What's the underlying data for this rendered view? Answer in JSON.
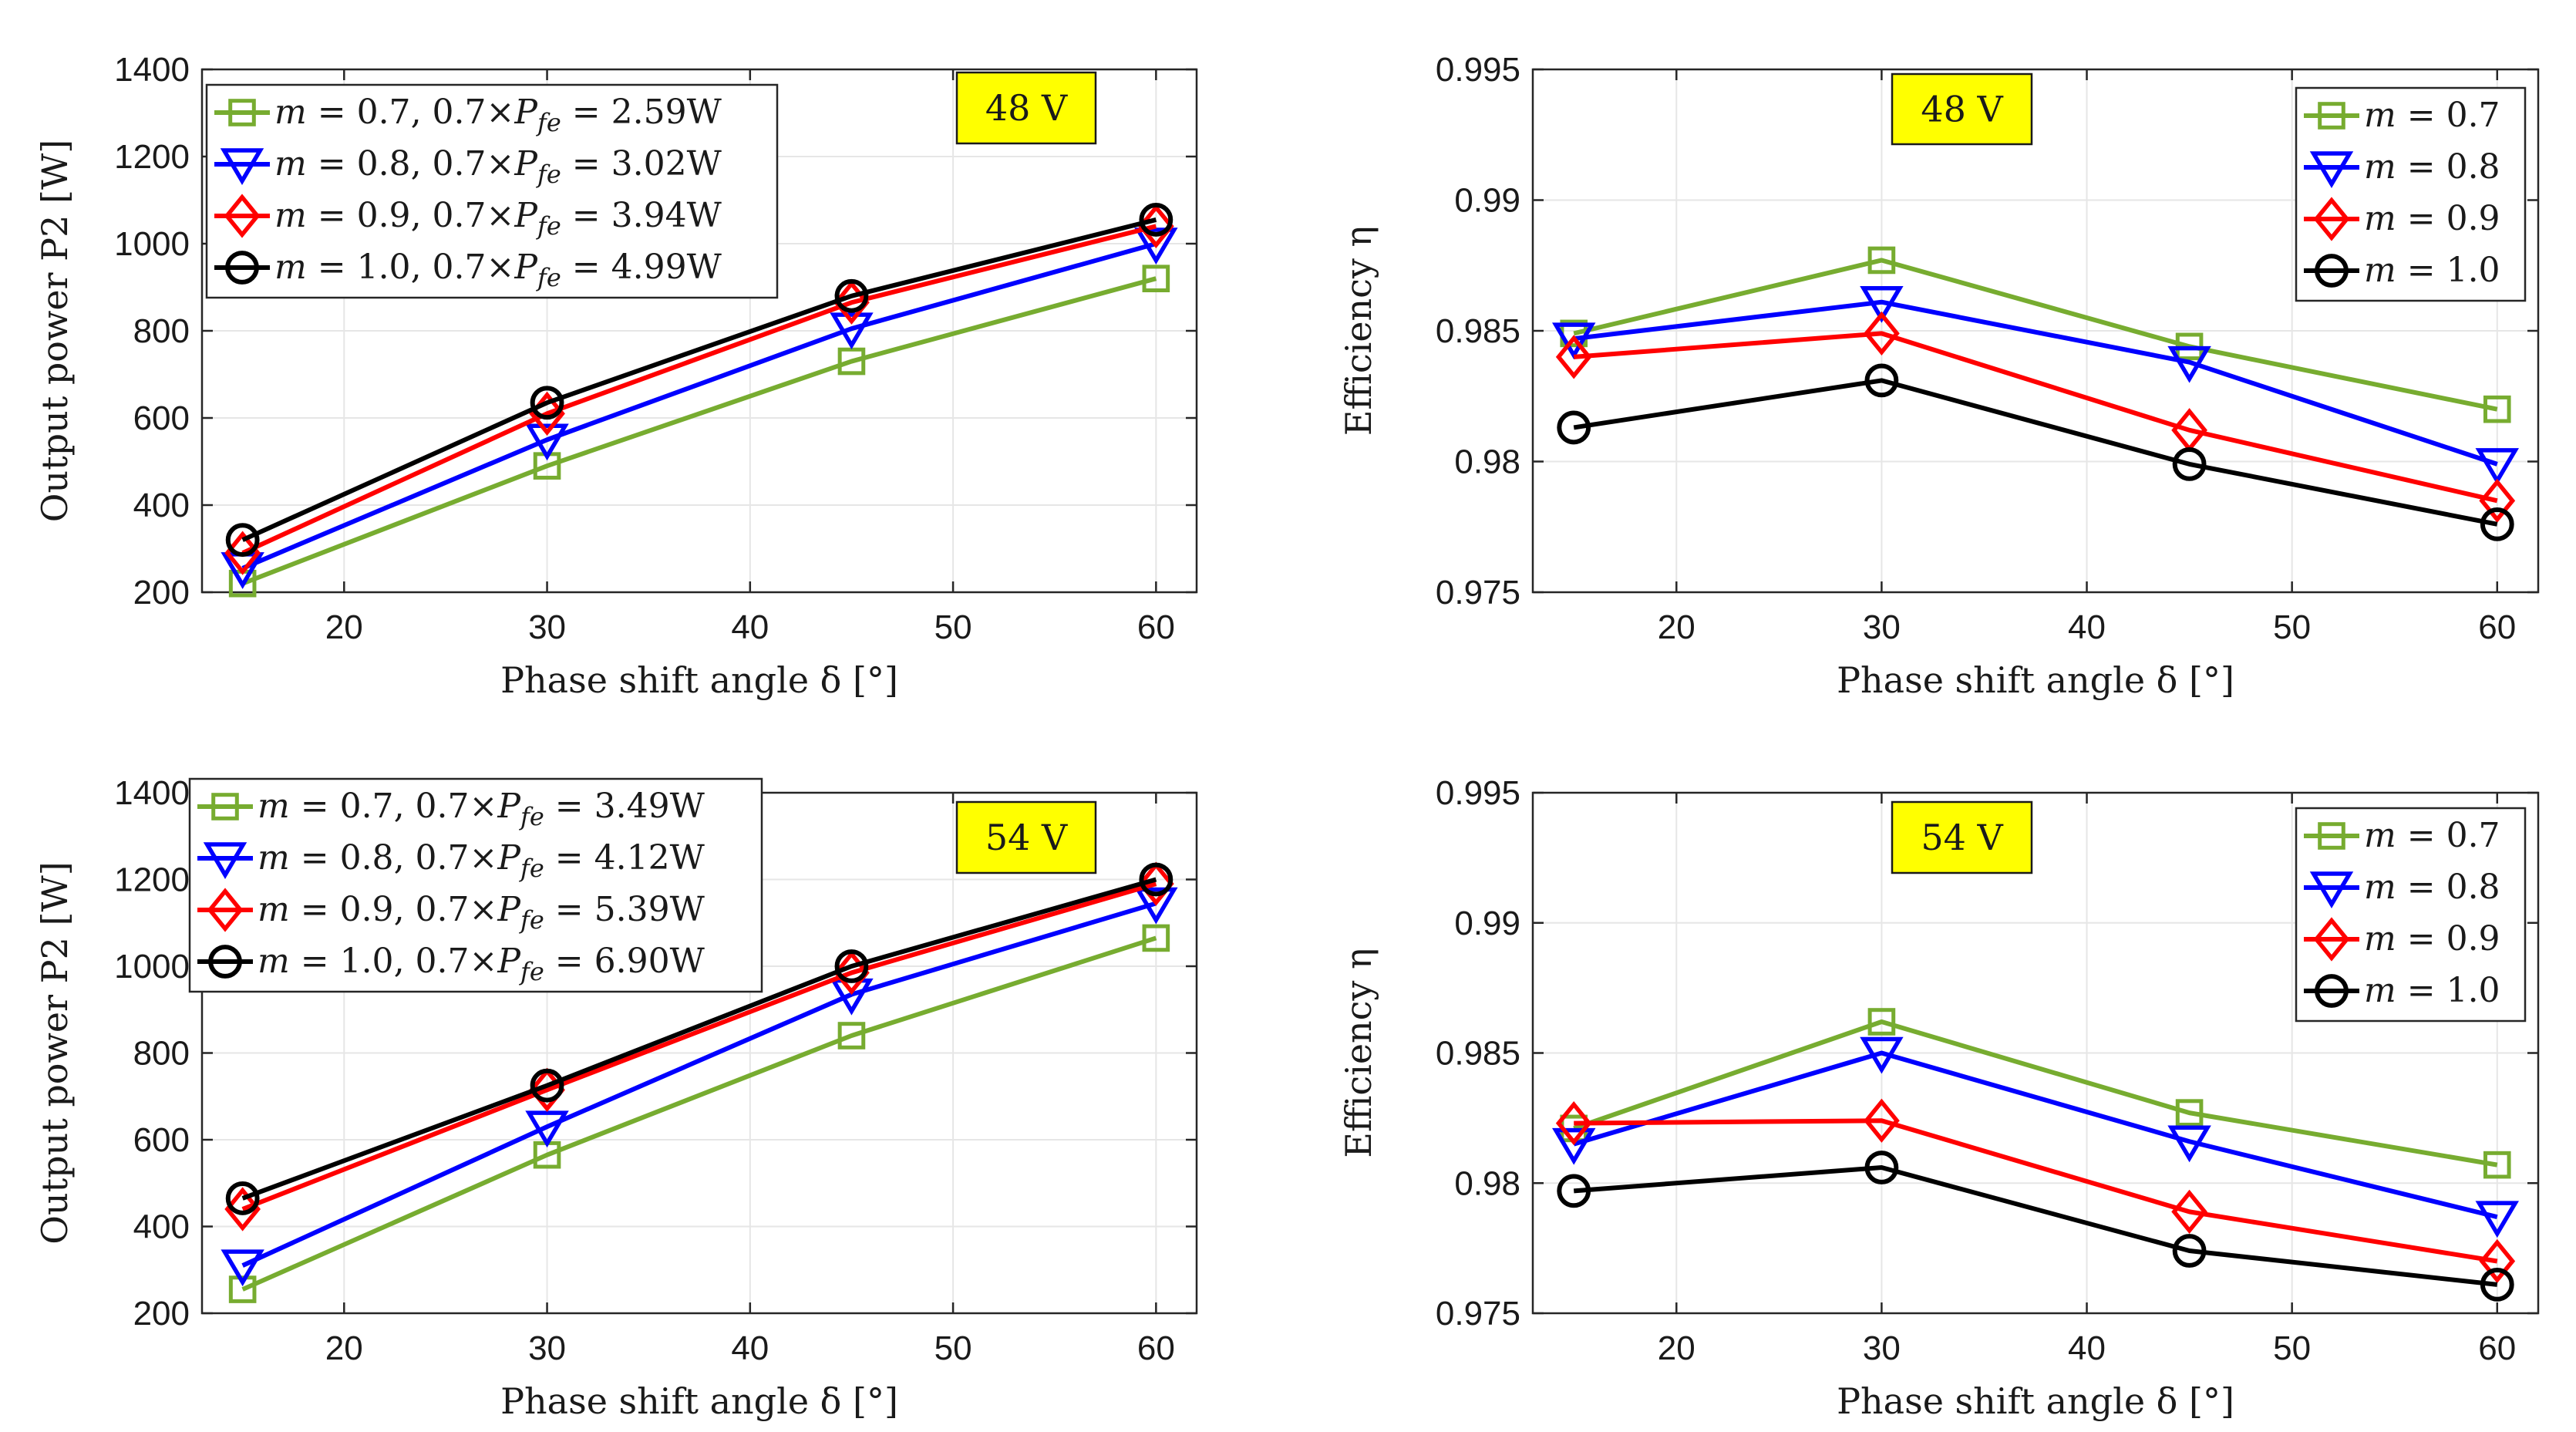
{
  "colors": {
    "m07": "#77ac30",
    "m08": "#0000ff",
    "m09": "#ff0000",
    "m10": "#000000",
    "badge": "#ffff00",
    "grid": "#e6e6e6"
  },
  "chart_data": [
    {
      "type": "line",
      "title": "",
      "badge": "48 V",
      "xlabel": "Phase shift angle δ [°]",
      "ylabel": "Output power P2 [W]",
      "xlim": [
        13,
        62
      ],
      "ylim": [
        200,
        1400
      ],
      "xticks": [
        "20",
        "30",
        "40",
        "50",
        "60"
      ],
      "xtick_values": [
        20,
        30,
        40,
        50,
        60
      ],
      "yticks": [
        "200",
        "400",
        "600",
        "800",
        "1000",
        "1200",
        "1400"
      ],
      "ytick_values": [
        200,
        400,
        600,
        800,
        1000,
        1200,
        1400
      ],
      "x": [
        15,
        30,
        45,
        60
      ],
      "legend_position": "top-left",
      "series": [
        {
          "name": "m = 0.7, 0.7×Pfe = 2.59W",
          "marker": "square",
          "color": "#77ac30",
          "values": [
            220,
            490,
            730,
            920
          ]
        },
        {
          "name": "m = 0.8, 0.7×Pfe = 3.02W",
          "marker": "triangle-down",
          "color": "#0000ff",
          "values": [
            255,
            550,
            805,
            1000
          ]
        },
        {
          "name": "m = 0.9, 0.7×Pfe = 3.94W",
          "marker": "diamond",
          "color": "#ff0000",
          "values": [
            290,
            610,
            865,
            1040
          ]
        },
        {
          "name": "m = 1.0, 0.7×Pfe = 4.99W",
          "marker": "circle",
          "color": "#000000",
          "values": [
            320,
            635,
            880,
            1055
          ]
        }
      ]
    },
    {
      "type": "line",
      "title": "",
      "badge": "48 V",
      "xlabel": "Phase shift angle δ [°]",
      "ylabel": "Efficiency η",
      "xlim": [
        13,
        62
      ],
      "ylim": [
        0.975,
        0.995
      ],
      "xticks": [
        "20",
        "30",
        "40",
        "50",
        "60"
      ],
      "xtick_values": [
        20,
        30,
        40,
        50,
        60
      ],
      "yticks": [
        "0.975",
        "0.98",
        "0.985",
        "0.99",
        "0.995"
      ],
      "ytick_values": [
        0.975,
        0.98,
        0.985,
        0.99,
        0.995
      ],
      "x": [
        15,
        30,
        45,
        60
      ],
      "legend_position": "top-right",
      "series": [
        {
          "name": "m = 0.7",
          "marker": "square",
          "color": "#77ac30",
          "values": [
            0.9849,
            0.9877,
            0.9844,
            0.982
          ]
        },
        {
          "name": "m = 0.8",
          "marker": "triangle-down",
          "color": "#0000ff",
          "values": [
            0.9847,
            0.9861,
            0.9838,
            0.9799
          ]
        },
        {
          "name": "m = 0.9",
          "marker": "diamond",
          "color": "#ff0000",
          "values": [
            0.984,
            0.9849,
            0.9812,
            0.9785
          ]
        },
        {
          "name": "m = 1.0",
          "marker": "circle",
          "color": "#000000",
          "values": [
            0.9813,
            0.9831,
            0.9799,
            0.9776
          ]
        }
      ]
    },
    {
      "type": "line",
      "title": "",
      "badge": "54 V",
      "xlabel": "Phase shift angle δ [°]",
      "ylabel": "Output power P2 [W]",
      "xlim": [
        13,
        62
      ],
      "ylim": [
        200,
        1400
      ],
      "xticks": [
        "20",
        "30",
        "40",
        "50",
        "60"
      ],
      "xtick_values": [
        20,
        30,
        40,
        50,
        60
      ],
      "yticks": [
        "200",
        "400",
        "600",
        "800",
        "1000",
        "1200",
        "1400"
      ],
      "ytick_values": [
        200,
        400,
        600,
        800,
        1000,
        1200,
        1400
      ],
      "x": [
        15,
        30,
        45,
        60
      ],
      "legend_position": "top-left",
      "series": [
        {
          "name": "m = 0.7, 0.7×Pfe = 3.49W",
          "marker": "square",
          "color": "#77ac30",
          "values": [
            255,
            565,
            840,
            1065
          ]
        },
        {
          "name": "m = 0.8, 0.7×Pfe = 4.12W",
          "marker": "triangle-down",
          "color": "#0000ff",
          "values": [
            310,
            630,
            935,
            1145
          ]
        },
        {
          "name": "m = 0.9, 0.7×Pfe = 5.39W",
          "marker": "diamond",
          "color": "#ff0000",
          "values": [
            440,
            715,
            985,
            1190
          ]
        },
        {
          "name": "m = 1.0, 0.7×Pfe = 6.90W",
          "marker": "circle",
          "color": "#000000",
          "values": [
            465,
            725,
            1000,
            1200
          ]
        }
      ]
    },
    {
      "type": "line",
      "title": "",
      "badge": "54 V",
      "xlabel": "Phase shift angle δ [°]",
      "ylabel": "Efficiency η",
      "xlim": [
        13,
        62
      ],
      "ylim": [
        0.975,
        0.995
      ],
      "xticks": [
        "20",
        "30",
        "40",
        "50",
        "60"
      ],
      "xtick_values": [
        20,
        30,
        40,
        50,
        60
      ],
      "yticks": [
        "0.975",
        "0.98",
        "0.985",
        "0.99",
        "0.995"
      ],
      "ytick_values": [
        0.975,
        0.98,
        0.985,
        0.99,
        0.995
      ],
      "x": [
        15,
        30,
        45,
        60
      ],
      "legend_position": "top-right",
      "series": [
        {
          "name": "m = 0.7",
          "marker": "square",
          "color": "#77ac30",
          "values": [
            0.9821,
            0.9862,
            0.9827,
            0.9807
          ]
        },
        {
          "name": "m = 0.8",
          "marker": "triangle-down",
          "color": "#0000ff",
          "values": [
            0.9815,
            0.985,
            0.9816,
            0.9787
          ]
        },
        {
          "name": "m = 0.9",
          "marker": "diamond",
          "color": "#ff0000",
          "values": [
            0.9823,
            0.9824,
            0.9789,
            0.977
          ]
        },
        {
          "name": "m = 1.0",
          "marker": "circle",
          "color": "#000000",
          "values": [
            0.9797,
            0.9806,
            0.9774,
            0.9761
          ]
        }
      ]
    }
  ]
}
